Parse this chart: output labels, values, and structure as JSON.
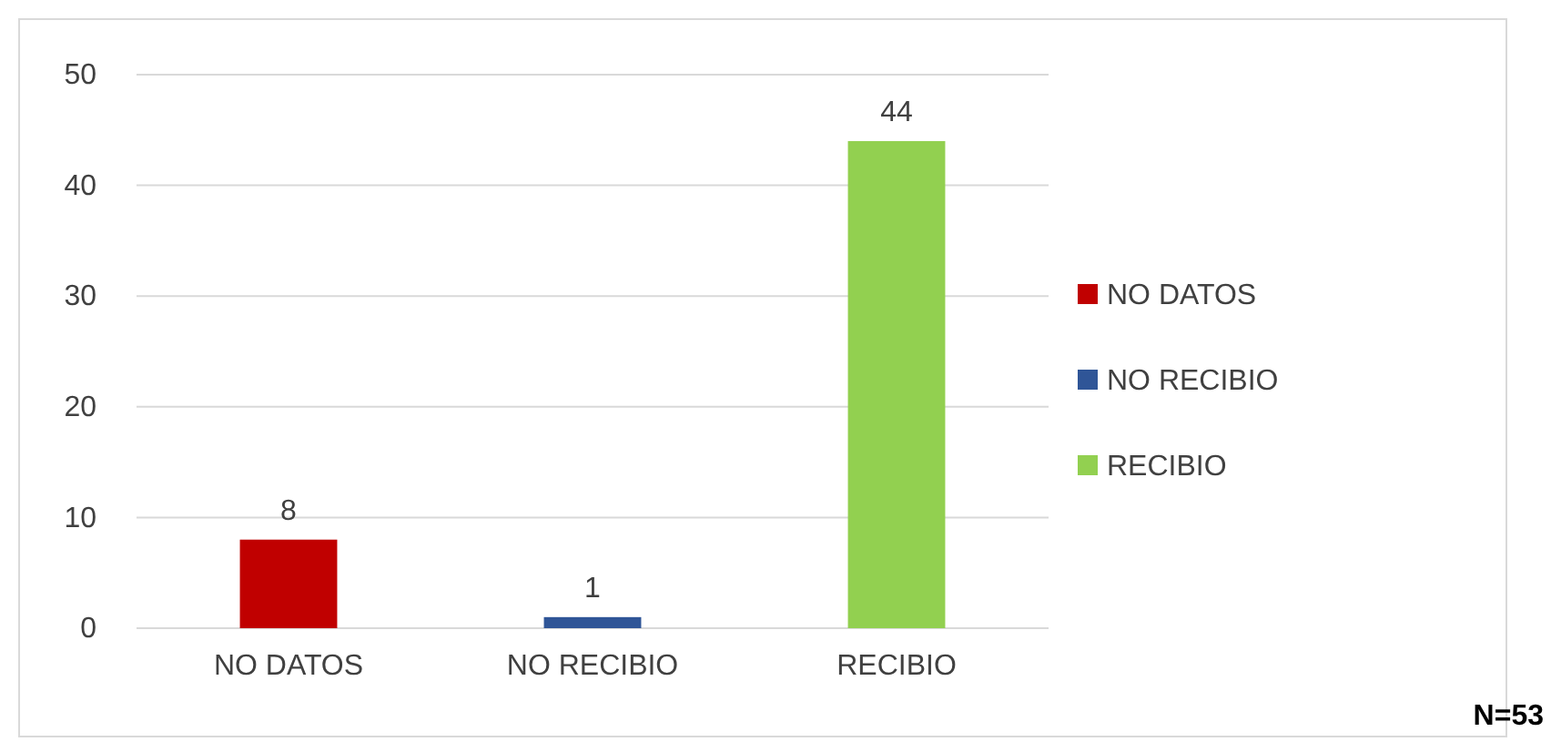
{
  "chart_data": {
    "type": "bar",
    "categories": [
      "NO DATOS",
      "NO RECIBIO",
      "RECIBIO"
    ],
    "series": [
      {
        "name": "NO DATOS",
        "color": "#c00000",
        "values": [
          8,
          null,
          null
        ]
      },
      {
        "name": "NO RECIBIO",
        "color": "#2f5597",
        "values": [
          null,
          1,
          null
        ]
      },
      {
        "name": "RECIBIO",
        "color": "#92d050",
        "values": [
          null,
          null,
          44
        ]
      }
    ],
    "stacked": true,
    "ylim": [
      0,
      50
    ],
    "yticks": [
      0,
      10,
      20,
      30,
      40,
      50
    ],
    "grid": "y",
    "legend": "right",
    "data_labels": true,
    "annotations": [
      "N=53"
    ]
  }
}
